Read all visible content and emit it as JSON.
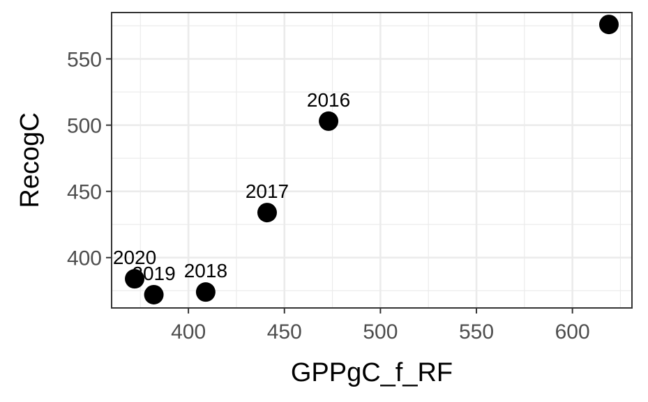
{
  "chart_data": {
    "type": "scatter",
    "xlabel": "GPPgC_f_RF",
    "ylabel": "RecogC",
    "xlim": [
      360,
      631
    ],
    "ylim": [
      362,
      585
    ],
    "x_ticks": [
      400,
      450,
      500,
      550,
      600
    ],
    "y_ticks": [
      400,
      450,
      500,
      550
    ],
    "grid": true,
    "theme": "bw",
    "points": [
      {
        "x": 372,
        "y": 384,
        "label": "2020"
      },
      {
        "x": 382,
        "y": 372,
        "label": "2019"
      },
      {
        "x": 409,
        "y": 374,
        "label": "2018"
      },
      {
        "x": 441,
        "y": 434,
        "label": "2017"
      },
      {
        "x": 473,
        "y": 503,
        "label": "2016"
      },
      {
        "x": 619,
        "y": 576,
        "label": ""
      }
    ]
  },
  "colors": {
    "point": "#000000",
    "grid": "#ebebeb",
    "panel_border": "#333333",
    "tick_text": "#4d4d4d"
  }
}
